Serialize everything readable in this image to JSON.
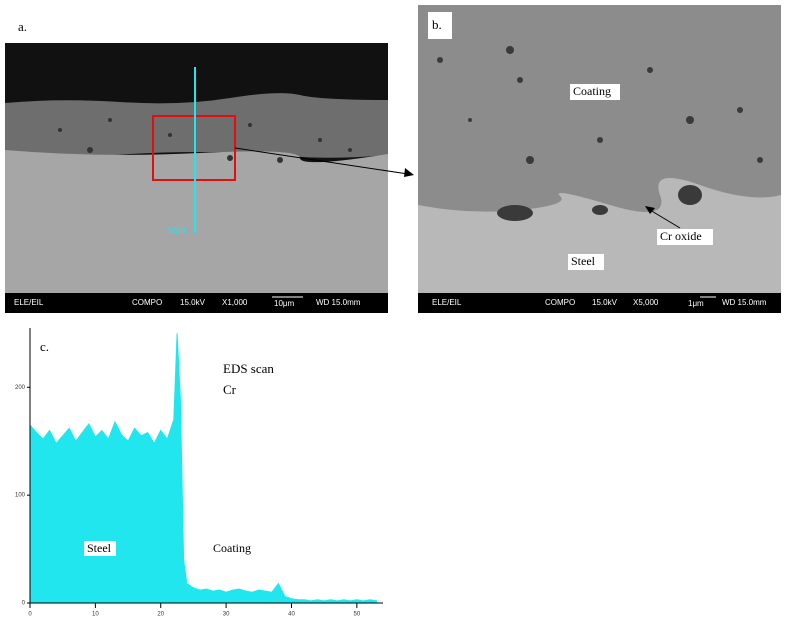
{
  "panel_a": {
    "label": "a.",
    "start": "Start",
    "footer": [
      "ELE/EIL",
      "COMPO",
      "15.0kV",
      "X1,000",
      "10μm",
      "WD 15.0mm"
    ]
  },
  "panel_b": {
    "label": "b.",
    "coating": "Coating",
    "cr_oxide": "Cr oxide",
    "steel": "Steel",
    "footer": [
      "ELE/EIL",
      "COMPO",
      "15.0kV",
      "X5,000",
      "1μm",
      "WD 15.0mm"
    ]
  },
  "chart_data": {
    "type": "area",
    "panel_label": "c.",
    "annotations": [
      "EDS scan",
      "Cr",
      "Steel",
      "Coating"
    ],
    "color": "#22e6ee",
    "x": [
      0,
      1,
      2,
      3,
      4,
      5,
      6,
      7,
      8,
      9,
      10,
      11,
      12,
      13,
      14,
      15,
      16,
      17,
      18,
      19,
      20,
      21,
      22,
      22.5,
      23,
      23.5,
      24,
      25,
      26,
      27,
      28,
      29,
      30,
      31,
      32,
      33,
      34,
      35,
      36,
      37,
      38,
      39,
      40,
      41,
      42,
      43,
      44,
      45,
      46,
      47,
      48,
      49,
      50,
      51,
      52,
      53
    ],
    "values": [
      165,
      158,
      152,
      160,
      148,
      155,
      162,
      150,
      158,
      166,
      154,
      160,
      152,
      168,
      156,
      150,
      162,
      155,
      158,
      148,
      160,
      152,
      170,
      250,
      190,
      40,
      18,
      14,
      12,
      13,
      11,
      12,
      10,
      12,
      13,
      11,
      10,
      12,
      11,
      10,
      18,
      6,
      4,
      3,
      3,
      2,
      3,
      2,
      3,
      2,
      3,
      2,
      3,
      2,
      3,
      2
    ],
    "xlim": [
      0,
      54
    ],
    "ylim": [
      0,
      255
    ],
    "xticks": [
      0,
      10,
      20,
      30,
      40,
      50
    ],
    "yticks": [
      0,
      100,
      200
    ]
  }
}
